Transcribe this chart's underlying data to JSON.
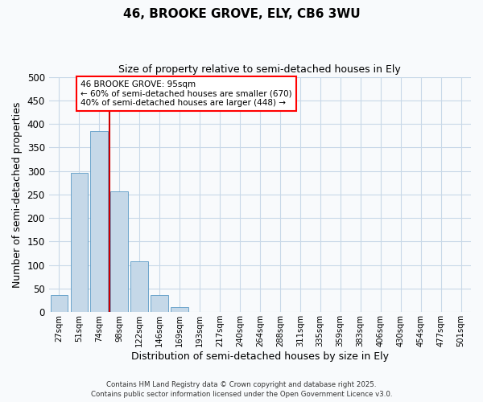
{
  "title": "46, BROOKE GROVE, ELY, CB6 3WU",
  "subtitle": "Size of property relative to semi-detached houses in Ely",
  "xlabel": "Distribution of semi-detached houses by size in Ely",
  "ylabel": "Number of semi-detached properties",
  "bar_labels": [
    "27sqm",
    "51sqm",
    "74sqm",
    "98sqm",
    "122sqm",
    "146sqm",
    "169sqm",
    "193sqm",
    "217sqm",
    "240sqm",
    "264sqm",
    "288sqm",
    "311sqm",
    "335sqm",
    "359sqm",
    "383sqm",
    "406sqm",
    "430sqm",
    "454sqm",
    "477sqm",
    "501sqm"
  ],
  "bar_values": [
    37,
    296,
    384,
    256,
    108,
    37,
    10,
    1,
    0,
    0,
    0,
    0,
    0,
    0,
    0,
    0,
    0,
    0,
    0,
    0,
    1
  ],
  "bar_color": "#c5d8e8",
  "bar_edge_color": "#5a9ac5",
  "ylim": [
    0,
    500
  ],
  "yticks": [
    0,
    50,
    100,
    150,
    200,
    250,
    300,
    350,
    400,
    450,
    500
  ],
  "property_line_idx": 3,
  "property_line_color": "#cc0000",
  "annotation_line1": "46 BROOKE GROVE: 95sqm",
  "annotation_line2": "← 60% of semi-detached houses are smaller (670)",
  "annotation_line3": "40% of semi-detached houses are larger (448) →",
  "annotation_fontsize": 7.5,
  "footer_line1": "Contains HM Land Registry data © Crown copyright and database right 2025.",
  "footer_line2": "Contains public sector information licensed under the Open Government Licence v3.0.",
  "background_color": "#f8fafc",
  "grid_color": "#c8d8e8",
  "title_fontsize": 11,
  "subtitle_fontsize": 9
}
